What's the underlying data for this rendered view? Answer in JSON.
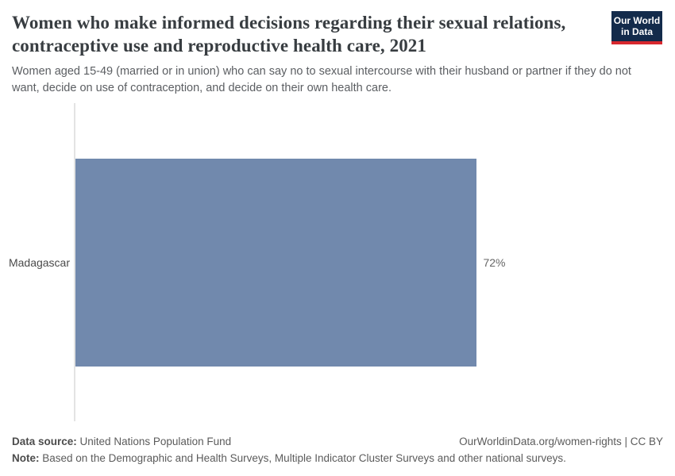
{
  "header": {
    "title": "Women who make informed decisions regarding their sexual relations, contraceptive use and reproductive health care, 2021",
    "subtitle": "Women aged 15-49 (married or in union) who can say no to sexual intercourse with their husband or partner if they do not want, decide on use of contraception, and decide on their own health care.",
    "logo": {
      "line1": "Our World",
      "line2": "in Data",
      "bg_color": "#132b4b",
      "accent_color": "#d7282e"
    }
  },
  "chart_data": {
    "type": "bar",
    "orientation": "horizontal",
    "title": "Women who make informed decisions regarding their sexual relations, contraceptive use and reproductive health care, 2021",
    "categories": [
      "Madagascar"
    ],
    "values": [
      72
    ],
    "value_labels": [
      "72%"
    ],
    "xlabel": "",
    "ylabel": "",
    "xlim": [
      0,
      100
    ],
    "grid": false,
    "legend": false,
    "bar_color": "#7189ad",
    "axis_line_color": "#e3e3e3"
  },
  "footer": {
    "source_label": "Data source:",
    "source_value": "United Nations Population Fund",
    "license": "OurWorldinData.org/women-rights | CC BY",
    "note_label": "Note:",
    "note_value": "Based on the Demographic and Health Surveys, Multiple Indicator Cluster Surveys and other national surveys."
  }
}
